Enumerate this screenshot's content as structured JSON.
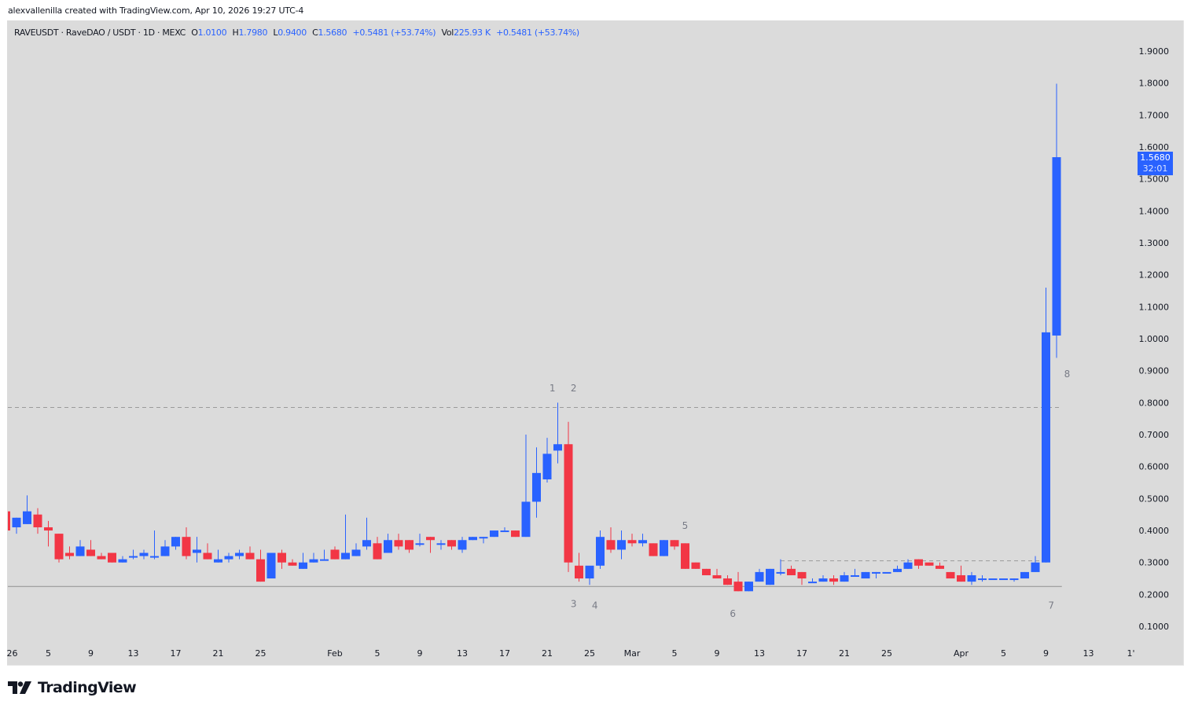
{
  "credit": "alexvallenilla created with TradingView.com, Apr 10, 2026 19:27 UTC-4",
  "legend": {
    "symbol": "RAVEUSDT · RaveDAO / USDT · 1D · MEXC",
    "o_label": "O",
    "o_value": "1.0100",
    "h_label": "H",
    "h_value": "1.7980",
    "l_label": "L",
    "l_value": "0.9400",
    "c_label": "C",
    "c_value": "1.5680",
    "change": "+0.5481 (+53.74%)",
    "vol_label": "Vol",
    "vol_value": "225.93 K",
    "vol_change": "+0.5481 (+53.74%)"
  },
  "last_price": {
    "value": "1.5680",
    "countdown": "32:01"
  },
  "logo": "TradingView",
  "colors": {
    "up": "#2962ff",
    "down": "#f23645",
    "background": "#dbdbdb",
    "axis_text": "#131722",
    "annotation": "#787b86"
  },
  "chart_data": {
    "type": "candlestick",
    "title": "RAVEUSDT · RaveDAO / USDT · 1D · MEXC",
    "xlabel": "",
    "ylabel": "",
    "ylim": [
      0.05,
      1.95
    ],
    "y_ticks": [
      "1.9000",
      "1.8000",
      "1.7000",
      "1.6000",
      "1.5000",
      "1.4000",
      "1.3000",
      "1.2000",
      "1.1000",
      "1.0000",
      "0.9000",
      "0.8000",
      "0.7000",
      "0.6000",
      "0.5000",
      "0.4000",
      "0.3000",
      "0.2000",
      "0.1000"
    ],
    "x_ticks": [
      {
        "label": "26",
        "day": 0
      },
      {
        "label": "5",
        "day": 4
      },
      {
        "label": "9",
        "day": 8
      },
      {
        "label": "13",
        "day": 12
      },
      {
        "label": "17",
        "day": 16
      },
      {
        "label": "21",
        "day": 20
      },
      {
        "label": "25",
        "day": 24
      },
      {
        "label": "Feb",
        "day": 31
      },
      {
        "label": "5",
        "day": 35
      },
      {
        "label": "9",
        "day": 39
      },
      {
        "label": "13",
        "day": 43
      },
      {
        "label": "17",
        "day": 47
      },
      {
        "label": "21",
        "day": 51
      },
      {
        "label": "25",
        "day": 55
      },
      {
        "label": "Mar",
        "day": 59
      },
      {
        "label": "5",
        "day": 63
      },
      {
        "label": "9",
        "day": 67
      },
      {
        "label": "13",
        "day": 71
      },
      {
        "label": "17",
        "day": 75
      },
      {
        "label": "21",
        "day": 79
      },
      {
        "label": "25",
        "day": 83
      },
      {
        "label": "Apr",
        "day": 90
      },
      {
        "label": "5",
        "day": 94
      },
      {
        "label": "9",
        "day": 98
      },
      {
        "label": "13",
        "day": 102
      },
      {
        "label": "1'",
        "day": 106
      }
    ],
    "grid": false,
    "candles": [
      {
        "d": 0,
        "o": 0.46,
        "h": 0.46,
        "l": 0.4,
        "c": 0.4
      },
      {
        "d": 1,
        "o": 0.41,
        "h": 0.44,
        "l": 0.39,
        "c": 0.44
      },
      {
        "d": 2,
        "o": 0.42,
        "h": 0.51,
        "l": 0.42,
        "c": 0.46
      },
      {
        "d": 3,
        "o": 0.45,
        "h": 0.47,
        "l": 0.39,
        "c": 0.41
      },
      {
        "d": 4,
        "o": 0.41,
        "h": 0.43,
        "l": 0.35,
        "c": 0.4
      },
      {
        "d": 5,
        "o": 0.39,
        "h": 0.39,
        "l": 0.3,
        "c": 0.31
      },
      {
        "d": 6,
        "o": 0.33,
        "h": 0.35,
        "l": 0.31,
        "c": 0.32
      },
      {
        "d": 7,
        "o": 0.32,
        "h": 0.37,
        "l": 0.32,
        "c": 0.35
      },
      {
        "d": 8,
        "o": 0.34,
        "h": 0.37,
        "l": 0.32,
        "c": 0.32
      },
      {
        "d": 9,
        "o": 0.32,
        "h": 0.33,
        "l": 0.31,
        "c": 0.31
      },
      {
        "d": 10,
        "o": 0.33,
        "h": 0.33,
        "l": 0.3,
        "c": 0.3
      },
      {
        "d": 11,
        "o": 0.3,
        "h": 0.32,
        "l": 0.3,
        "c": 0.31
      },
      {
        "d": 12,
        "o": 0.32,
        "h": 0.34,
        "l": 0.31,
        "c": 0.32
      },
      {
        "d": 13,
        "o": 0.32,
        "h": 0.34,
        "l": 0.31,
        "c": 0.33
      },
      {
        "d": 14,
        "o": 0.32,
        "h": 0.4,
        "l": 0.31,
        "c": 0.32
      },
      {
        "d": 15,
        "o": 0.32,
        "h": 0.37,
        "l": 0.32,
        "c": 0.35
      },
      {
        "d": 16,
        "o": 0.35,
        "h": 0.38,
        "l": 0.34,
        "c": 0.38
      },
      {
        "d": 17,
        "o": 0.38,
        "h": 0.41,
        "l": 0.31,
        "c": 0.32
      },
      {
        "d": 18,
        "o": 0.33,
        "h": 0.38,
        "l": 0.3,
        "c": 0.34
      },
      {
        "d": 19,
        "o": 0.33,
        "h": 0.36,
        "l": 0.31,
        "c": 0.31
      },
      {
        "d": 20,
        "o": 0.3,
        "h": 0.34,
        "l": 0.3,
        "c": 0.31
      },
      {
        "d": 21,
        "o": 0.31,
        "h": 0.33,
        "l": 0.3,
        "c": 0.32
      },
      {
        "d": 22,
        "o": 0.32,
        "h": 0.34,
        "l": 0.31,
        "c": 0.33
      },
      {
        "d": 23,
        "o": 0.33,
        "h": 0.35,
        "l": 0.31,
        "c": 0.31
      },
      {
        "d": 24,
        "o": 0.31,
        "h": 0.34,
        "l": 0.24,
        "c": 0.24
      },
      {
        "d": 25,
        "o": 0.25,
        "h": 0.33,
        "l": 0.25,
        "c": 0.33
      },
      {
        "d": 26,
        "o": 0.33,
        "h": 0.34,
        "l": 0.28,
        "c": 0.3
      },
      {
        "d": 27,
        "o": 0.3,
        "h": 0.31,
        "l": 0.29,
        "c": 0.29
      },
      {
        "d": 28,
        "o": 0.28,
        "h": 0.33,
        "l": 0.28,
        "c": 0.3
      },
      {
        "d": 29,
        "o": 0.3,
        "h": 0.33,
        "l": 0.3,
        "c": 0.31
      },
      {
        "d": 30,
        "o": 0.31,
        "h": 0.34,
        "l": 0.31,
        "c": 0.31
      },
      {
        "d": 31,
        "o": 0.34,
        "h": 0.35,
        "l": 0.31,
        "c": 0.31
      },
      {
        "d": 32,
        "o": 0.31,
        "h": 0.45,
        "l": 0.31,
        "c": 0.33
      },
      {
        "d": 33,
        "o": 0.32,
        "h": 0.36,
        "l": 0.32,
        "c": 0.34
      },
      {
        "d": 34,
        "o": 0.35,
        "h": 0.44,
        "l": 0.34,
        "c": 0.37
      },
      {
        "d": 35,
        "o": 0.36,
        "h": 0.38,
        "l": 0.31,
        "c": 0.31
      },
      {
        "d": 36,
        "o": 0.33,
        "h": 0.39,
        "l": 0.33,
        "c": 0.37
      },
      {
        "d": 37,
        "o": 0.37,
        "h": 0.39,
        "l": 0.34,
        "c": 0.35
      },
      {
        "d": 38,
        "o": 0.37,
        "h": 0.37,
        "l": 0.33,
        "c": 0.34
      },
      {
        "d": 39,
        "o": 0.36,
        "h": 0.39,
        "l": 0.35,
        "c": 0.36
      },
      {
        "d": 40,
        "o": 0.38,
        "h": 0.38,
        "l": 0.33,
        "c": 0.37
      },
      {
        "d": 41,
        "o": 0.36,
        "h": 0.37,
        "l": 0.34,
        "c": 0.36
      },
      {
        "d": 42,
        "o": 0.37,
        "h": 0.37,
        "l": 0.34,
        "c": 0.35
      },
      {
        "d": 43,
        "o": 0.34,
        "h": 0.38,
        "l": 0.33,
        "c": 0.37
      },
      {
        "d": 44,
        "o": 0.37,
        "h": 0.38,
        "l": 0.37,
        "c": 0.38
      },
      {
        "d": 45,
        "o": 0.38,
        "h": 0.38,
        "l": 0.36,
        "c": 0.38
      },
      {
        "d": 46,
        "o": 0.38,
        "h": 0.39,
        "l": 0.38,
        "c": 0.4
      },
      {
        "d": 47,
        "o": 0.4,
        "h": 0.41,
        "l": 0.4,
        "c": 0.4
      },
      {
        "d": 48,
        "o": 0.4,
        "h": 0.4,
        "l": 0.38,
        "c": 0.38
      },
      {
        "d": 49,
        "o": 0.38,
        "h": 0.7,
        "l": 0.38,
        "c": 0.49
      },
      {
        "d": 50,
        "o": 0.49,
        "h": 0.66,
        "l": 0.44,
        "c": 0.58
      },
      {
        "d": 51,
        "o": 0.56,
        "h": 0.69,
        "l": 0.55,
        "c": 0.64
      },
      {
        "d": 52,
        "o": 0.65,
        "h": 0.8,
        "l": 0.61,
        "c": 0.67
      },
      {
        "d": 53,
        "o": 0.67,
        "h": 0.74,
        "l": 0.27,
        "c": 0.3
      },
      {
        "d": 54,
        "o": 0.29,
        "h": 0.33,
        "l": 0.24,
        "c": 0.25
      },
      {
        "d": 55,
        "o": 0.25,
        "h": 0.28,
        "l": 0.23,
        "c": 0.29
      },
      {
        "d": 56,
        "o": 0.29,
        "h": 0.4,
        "l": 0.28,
        "c": 0.38
      },
      {
        "d": 57,
        "o": 0.37,
        "h": 0.41,
        "l": 0.33,
        "c": 0.34
      },
      {
        "d": 58,
        "o": 0.34,
        "h": 0.4,
        "l": 0.31,
        "c": 0.37
      },
      {
        "d": 59,
        "o": 0.37,
        "h": 0.39,
        "l": 0.35,
        "c": 0.36
      },
      {
        "d": 60,
        "o": 0.36,
        "h": 0.39,
        "l": 0.35,
        "c": 0.37
      },
      {
        "d": 61,
        "o": 0.36,
        "h": 0.36,
        "l": 0.32,
        "c": 0.32
      },
      {
        "d": 62,
        "o": 0.32,
        "h": 0.37,
        "l": 0.32,
        "c": 0.37
      },
      {
        "d": 63,
        "o": 0.37,
        "h": 0.37,
        "l": 0.34,
        "c": 0.35
      },
      {
        "d": 64,
        "o": 0.36,
        "h": 0.36,
        "l": 0.28,
        "c": 0.28
      },
      {
        "d": 65,
        "o": 0.3,
        "h": 0.3,
        "l": 0.28,
        "c": 0.28
      },
      {
        "d": 66,
        "o": 0.28,
        "h": 0.28,
        "l": 0.26,
        "c": 0.26
      },
      {
        "d": 67,
        "o": 0.26,
        "h": 0.28,
        "l": 0.25,
        "c": 0.25
      },
      {
        "d": 68,
        "o": 0.25,
        "h": 0.26,
        "l": 0.23,
        "c": 0.23
      },
      {
        "d": 69,
        "o": 0.24,
        "h": 0.27,
        "l": 0.21,
        "c": 0.21
      },
      {
        "d": 70,
        "o": 0.21,
        "h": 0.24,
        "l": 0.21,
        "c": 0.24
      },
      {
        "d": 71,
        "o": 0.24,
        "h": 0.28,
        "l": 0.24,
        "c": 0.27
      },
      {
        "d": 72,
        "o": 0.23,
        "h": 0.28,
        "l": 0.23,
        "c": 0.28
      },
      {
        "d": 73,
        "o": 0.27,
        "h": 0.31,
        "l": 0.26,
        "c": 0.27
      },
      {
        "d": 74,
        "o": 0.28,
        "h": 0.29,
        "l": 0.26,
        "c": 0.26
      },
      {
        "d": 75,
        "o": 0.27,
        "h": 0.27,
        "l": 0.23,
        "c": 0.25
      },
      {
        "d": 76,
        "o": 0.24,
        "h": 0.25,
        "l": 0.24,
        "c": 0.24
      },
      {
        "d": 77,
        "o": 0.24,
        "h": 0.26,
        "l": 0.24,
        "c": 0.25
      },
      {
        "d": 78,
        "o": 0.25,
        "h": 0.26,
        "l": 0.23,
        "c": 0.24
      },
      {
        "d": 79,
        "o": 0.24,
        "h": 0.27,
        "l": 0.24,
        "c": 0.26
      },
      {
        "d": 80,
        "o": 0.26,
        "h": 0.28,
        "l": 0.26,
        "c": 0.26
      },
      {
        "d": 81,
        "o": 0.25,
        "h": 0.27,
        "l": 0.25,
        "c": 0.27
      },
      {
        "d": 82,
        "o": 0.27,
        "h": 0.27,
        "l": 0.25,
        "c": 0.27
      },
      {
        "d": 83,
        "o": 0.27,
        "h": 0.27,
        "l": 0.27,
        "c": 0.27
      },
      {
        "d": 84,
        "o": 0.27,
        "h": 0.29,
        "l": 0.27,
        "c": 0.28
      },
      {
        "d": 85,
        "o": 0.28,
        "h": 0.31,
        "l": 0.28,
        "c": 0.3
      },
      {
        "d": 86,
        "o": 0.31,
        "h": 0.31,
        "l": 0.28,
        "c": 0.29
      },
      {
        "d": 87,
        "o": 0.3,
        "h": 0.3,
        "l": 0.29,
        "c": 0.29
      },
      {
        "d": 88,
        "o": 0.29,
        "h": 0.3,
        "l": 0.28,
        "c": 0.28
      },
      {
        "d": 89,
        "o": 0.27,
        "h": 0.27,
        "l": 0.25,
        "c": 0.25
      },
      {
        "d": 90,
        "o": 0.26,
        "h": 0.29,
        "l": 0.24,
        "c": 0.24
      },
      {
        "d": 91,
        "o": 0.24,
        "h": 0.27,
        "l": 0.23,
        "c": 0.26
      },
      {
        "d": 92,
        "o": 0.25,
        "h": 0.26,
        "l": 0.24,
        "c": 0.25
      },
      {
        "d": 93,
        "o": 0.25,
        "h": 0.25,
        "l": 0.25,
        "c": 0.25
      },
      {
        "d": 94,
        "o": 0.25,
        "h": 0.25,
        "l": 0.25,
        "c": 0.25
      },
      {
        "d": 95,
        "o": 0.25,
        "h": 0.25,
        "l": 0.24,
        "c": 0.25
      },
      {
        "d": 96,
        "o": 0.25,
        "h": 0.27,
        "l": 0.25,
        "c": 0.27
      },
      {
        "d": 97,
        "o": 0.27,
        "h": 0.32,
        "l": 0.27,
        "c": 0.3
      },
      {
        "d": 98,
        "o": 0.3,
        "h": 1.16,
        "l": 0.3,
        "c": 1.02
      },
      {
        "d": 99,
        "o": 1.01,
        "h": 1.798,
        "l": 0.94,
        "c": 1.568
      }
    ],
    "reference_lines": [
      {
        "price": 0.785,
        "from_day": -1,
        "to_day": 99.5,
        "style": "dashed"
      },
      {
        "price": 0.305,
        "from_day": 73,
        "to_day": 98,
        "style": "dashed"
      },
      {
        "price": 0.225,
        "from_day": -1,
        "to_day": 99.5,
        "style": "solid"
      }
    ],
    "annotations": [
      {
        "text": "1",
        "day": 51.5,
        "price": 0.835
      },
      {
        "text": "2",
        "day": 53.5,
        "price": 0.835
      },
      {
        "text": "3",
        "day": 53.5,
        "price": 0.16
      },
      {
        "text": "4",
        "day": 55.5,
        "price": 0.155
      },
      {
        "text": "5",
        "day": 64,
        "price": 0.405
      },
      {
        "text": "6",
        "day": 68.5,
        "price": 0.13
      },
      {
        "text": "7",
        "day": 98.5,
        "price": 0.155
      },
      {
        "text": "8",
        "day": 100,
        "price": 0.88
      }
    ]
  }
}
